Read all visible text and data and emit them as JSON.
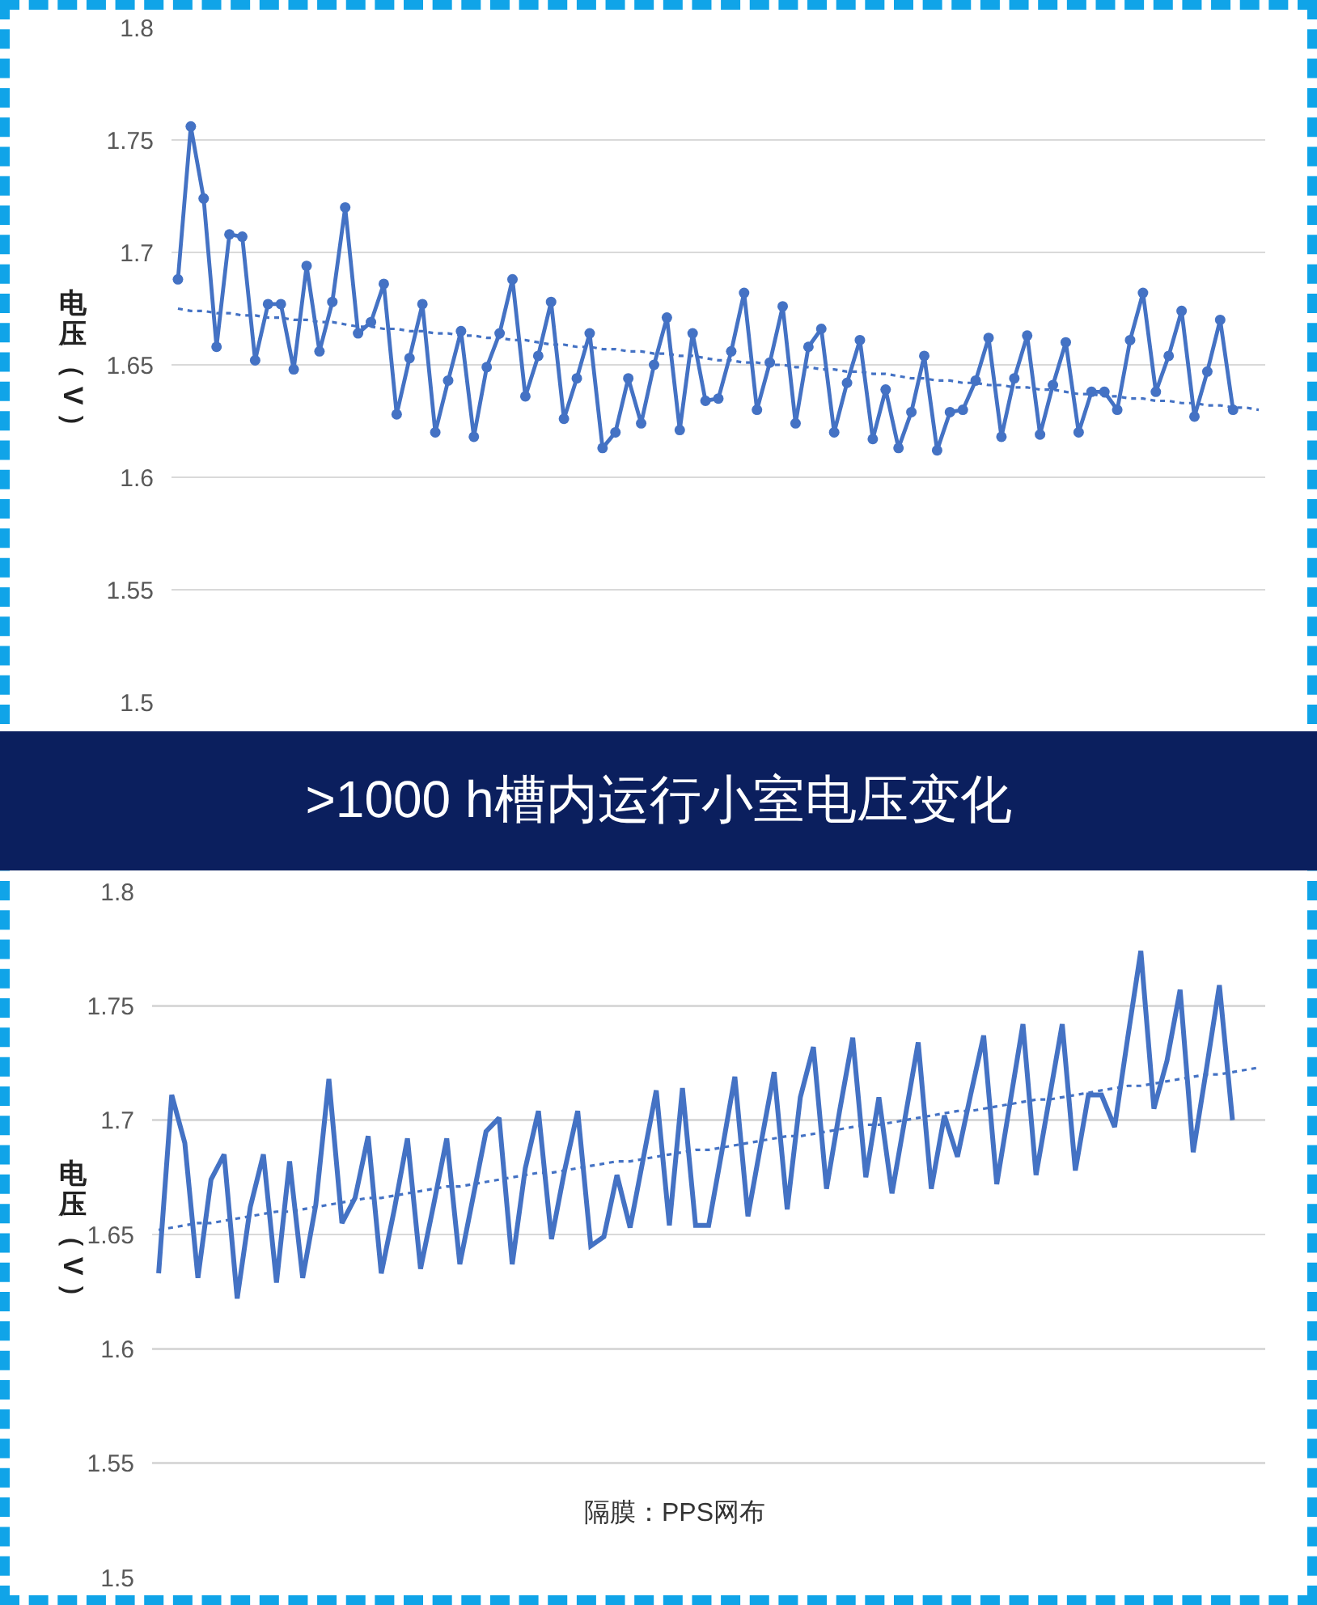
{
  "chart_data": [
    {
      "type": "line",
      "ylabel": "电压（V）",
      "categories": [
        null,
        null,
        null,
        null,
        null,
        null,
        null,
        null,
        null,
        null,
        null,
        null,
        null,
        null,
        null,
        null,
        null,
        null,
        null,
        null,
        null,
        null,
        null,
        null,
        null,
        null,
        null,
        null,
        null,
        null,
        null,
        null,
        null,
        null,
        null,
        null,
        null,
        null,
        null,
        null,
        null,
        null,
        null,
        null,
        null,
        null,
        null,
        null,
        null,
        null,
        null,
        null,
        null,
        null,
        null,
        null,
        null,
        null,
        null,
        null,
        null,
        null,
        null,
        null,
        null,
        null,
        null,
        null,
        null,
        null,
        null,
        null,
        null,
        null,
        null,
        null,
        null,
        null,
        null,
        null,
        null,
        null,
        null,
        null,
        null
      ],
      "series": [
        {
          "color": "#4472c4",
          "values": [
            1.688,
            1.756,
            1.724,
            1.658,
            1.708,
            1.707,
            1.652,
            1.677,
            1.677,
            1.648,
            1.694,
            1.656,
            1.678,
            1.72,
            1.664,
            1.669,
            1.686,
            1.628,
            1.653,
            1.677,
            1.62,
            1.643,
            1.665,
            1.618,
            1.649,
            1.664,
            1.688,
            1.636,
            1.654,
            1.678,
            1.626,
            1.644,
            1.664,
            1.613,
            1.62,
            1.644,
            1.624,
            1.65,
            1.671,
            1.621,
            1.664,
            1.634,
            1.635,
            1.656,
            1.682,
            1.63,
            1.651,
            1.676,
            1.624,
            1.658,
            1.666,
            1.62,
            1.642,
            1.661,
            1.617,
            1.639,
            1.613,
            1.629,
            1.654,
            1.612,
            1.629,
            1.63,
            1.643,
            1.662,
            1.618,
            1.644,
            1.663,
            1.619,
            1.641,
            1.66,
            1.62,
            1.638,
            1.638,
            1.63,
            1.661,
            1.682,
            1.638,
            1.654,
            1.674,
            1.627,
            1.647,
            1.67,
            1.63,
            null,
            null
          ]
        },
        {
          "values": [
            1.675,
            1.674,
            1.674,
            1.673,
            1.673,
            1.672,
            1.672,
            1.671,
            1.671,
            1.67,
            1.67,
            1.669,
            1.669,
            1.668,
            1.667,
            1.667,
            1.666,
            1.666,
            1.665,
            1.665,
            1.664,
            1.664,
            1.663,
            1.663,
            1.662,
            1.662,
            1.661,
            1.661,
            1.66,
            1.659,
            1.659,
            1.658,
            1.658,
            1.657,
            1.657,
            1.656,
            1.656,
            1.655,
            1.655,
            1.654,
            1.654,
            1.653,
            1.652,
            1.652,
            1.651,
            1.651,
            1.65,
            1.65,
            1.649,
            1.649,
            1.648,
            1.648,
            1.647,
            1.647,
            1.646,
            1.646,
            1.645,
            1.644,
            1.644,
            1.643,
            1.643,
            1.642,
            1.642,
            1.641,
            1.641,
            1.64,
            1.64,
            1.639,
            1.639,
            1.638,
            1.637,
            1.637,
            1.636,
            1.636,
            1.635,
            1.635,
            1.634,
            1.634,
            1.633,
            1.633,
            1.632,
            1.632,
            1.631,
            1.631,
            1.63
          ],
          "color": "#4472c4",
          "line_style": "dotted",
          "marker": "none"
        }
      ],
      "ylim": [
        1.5,
        1.8
      ],
      "yticks": [
        1.5,
        1.55,
        1.6,
        1.65,
        1.7,
        1.75,
        1.8
      ],
      "grid": "y",
      "tick_labels": "y",
      "marker": "circle"
    },
    {
      "type": "line",
      "title": ">1000 h槽内运行小室电压变化",
      "ylabel": "电压（V）",
      "annotations": [
        "隔膜：PPS网布"
      ],
      "categories": [
        null,
        null,
        null,
        null,
        null,
        null,
        null,
        null,
        null,
        null,
        null,
        null,
        null,
        null,
        null,
        null,
        null,
        null,
        null,
        null,
        null,
        null,
        null,
        null,
        null,
        null,
        null,
        null,
        null,
        null,
        null,
        null,
        null,
        null,
        null,
        null,
        null,
        null,
        null,
        null,
        null,
        null,
        null,
        null,
        null,
        null,
        null,
        null,
        null,
        null,
        null,
        null,
        null,
        null,
        null,
        null,
        null,
        null,
        null,
        null,
        null,
        null,
        null,
        null,
        null,
        null,
        null,
        null,
        null,
        null,
        null,
        null,
        null,
        null,
        null,
        null,
        null,
        null,
        null,
        null,
        null,
        null,
        null,
        null,
        null
      ],
      "series": [
        {
          "color": "#4472c4",
          "values": [
            1.633,
            1.711,
            1.69,
            1.631,
            1.674,
            1.685,
            1.622,
            1.662,
            1.685,
            1.629,
            1.682,
            1.631,
            1.663,
            1.718,
            1.655,
            1.666,
            1.693,
            1.633,
            1.661,
            1.692,
            1.635,
            1.663,
            1.692,
            1.637,
            1.666,
            1.695,
            1.701,
            1.637,
            1.679,
            1.704,
            1.648,
            1.678,
            1.704,
            1.645,
            1.649,
            1.676,
            1.653,
            1.683,
            1.713,
            1.654,
            1.714,
            1.654,
            1.654,
            1.686,
            1.719,
            1.658,
            1.69,
            1.721,
            1.661,
            1.71,
            1.732,
            1.67,
            1.704,
            1.736,
            1.675,
            1.71,
            1.668,
            1.701,
            1.734,
            1.67,
            1.702,
            1.684,
            1.711,
            1.737,
            1.672,
            1.707,
            1.742,
            1.676,
            1.709,
            1.742,
            1.678,
            1.711,
            1.711,
            1.697,
            1.736,
            1.774,
            1.705,
            1.726,
            1.757,
            1.686,
            1.722,
            1.759,
            1.7,
            null,
            null
          ]
        },
        {
          "values": [
            1.652,
            1.653,
            1.654,
            1.655,
            1.655,
            1.656,
            1.657,
            1.658,
            1.659,
            1.66,
            1.66,
            1.661,
            1.662,
            1.663,
            1.664,
            1.665,
            1.666,
            1.666,
            1.667,
            1.668,
            1.669,
            1.67,
            1.671,
            1.671,
            1.672,
            1.673,
            1.674,
            1.675,
            1.676,
            1.677,
            1.677,
            1.678,
            1.679,
            1.68,
            1.681,
            1.682,
            1.682,
            1.683,
            1.684,
            1.685,
            1.686,
            1.687,
            1.687,
            1.688,
            1.689,
            1.69,
            1.691,
            1.692,
            1.693,
            1.693,
            1.694,
            1.695,
            1.696,
            1.697,
            1.698,
            1.698,
            1.699,
            1.7,
            1.701,
            1.702,
            1.703,
            1.704,
            1.704,
            1.705,
            1.706,
            1.707,
            1.708,
            1.709,
            1.709,
            1.71,
            1.711,
            1.712,
            1.713,
            1.714,
            1.715,
            1.715,
            1.716,
            1.717,
            1.718,
            1.719,
            1.72,
            1.72,
            1.721,
            1.722,
            1.723
          ],
          "color": "#4472c4",
          "line_style": "dotted",
          "marker": "none"
        }
      ],
      "ylim": [
        1.5,
        1.8
      ],
      "yticks": [
        1.5,
        1.55,
        1.6,
        1.65,
        1.7,
        1.75,
        1.8
      ],
      "grid": "y",
      "tick_labels": "y",
      "marker": "none"
    }
  ]
}
